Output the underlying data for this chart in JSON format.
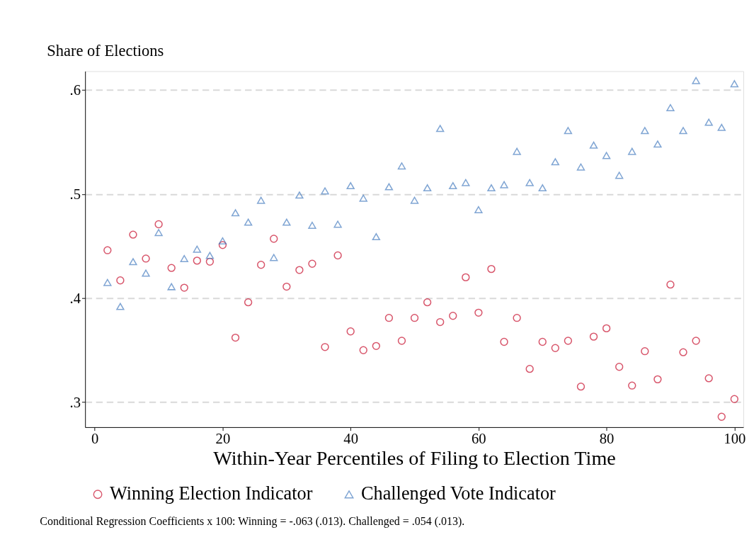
{
  "chart_data": {
    "type": "scatter",
    "ylabel": "Share of Elections",
    "xlabel": "Within-Year Percentiles of Filing to Election Time",
    "x": [
      2,
      4,
      6,
      8,
      10,
      12,
      14,
      16,
      18,
      20,
      22,
      24,
      26,
      28,
      30,
      32,
      34,
      36,
      38,
      40,
      42,
      44,
      46,
      48,
      50,
      52,
      54,
      56,
      58,
      60,
      62,
      64,
      66,
      68,
      70,
      72,
      74,
      76,
      78,
      80,
      82,
      84,
      86,
      88,
      90,
      92,
      94,
      96,
      98,
      100
    ],
    "series": [
      {
        "name": "Winning Election Indicator",
        "color": "#c8102e",
        "marker": "circle",
        "values": [
          0.446,
          0.417,
          0.461,
          0.438,
          0.471,
          0.429,
          0.41,
          0.436,
          0.435,
          0.451,
          0.362,
          0.396,
          0.432,
          0.457,
          0.411,
          0.427,
          0.433,
          0.353,
          0.441,
          0.368,
          0.35,
          0.354,
          0.381,
          0.359,
          0.381,
          0.396,
          0.377,
          0.383,
          0.42,
          0.386,
          0.428,
          0.358,
          0.381,
          0.332,
          0.358,
          0.352,
          0.359,
          0.315,
          0.363,
          0.371,
          0.334,
          0.316,
          0.349,
          0.322,
          0.413,
          0.348,
          0.359,
          0.323,
          0.286,
          0.303
        ]
      },
      {
        "name": "Challenged Vote Indicator",
        "color": "#4a7fc1",
        "marker": "triangle",
        "values": [
          0.415,
          0.392,
          0.435,
          0.424,
          0.463,
          0.411,
          0.438,
          0.447,
          0.441,
          0.455,
          0.482,
          0.473,
          0.494,
          0.439,
          0.473,
          0.499,
          0.47,
          0.503,
          0.471,
          0.508,
          0.496,
          0.459,
          0.507,
          0.527,
          0.494,
          0.506,
          0.563,
          0.508,
          0.511,
          0.485,
          0.506,
          0.509,
          0.541,
          0.511,
          0.506,
          0.531,
          0.561,
          0.526,
          0.547,
          0.537,
          0.518,
          0.541,
          0.561,
          0.548,
          0.583,
          0.561,
          0.609,
          0.569,
          0.564,
          0.606
        ]
      }
    ],
    "xlim": [
      -1.5,
      101.4
    ],
    "xticks": [
      0,
      20,
      40,
      60,
      80,
      100
    ],
    "ylim": [
      0.276,
      0.618
    ],
    "yticks": [
      {
        "value": 0.3,
        "label": ".3"
      },
      {
        "value": 0.4,
        "label": ".4"
      },
      {
        "value": 0.5,
        "label": ".5"
      },
      {
        "value": 0.6,
        "label": ".6"
      }
    ],
    "grid": "y",
    "legend": "bottom",
    "annotations": [
      "Conditional Regression Coefficients x 100: Winning = -.063 (.013). Challenged =  .054 (.013)."
    ]
  }
}
